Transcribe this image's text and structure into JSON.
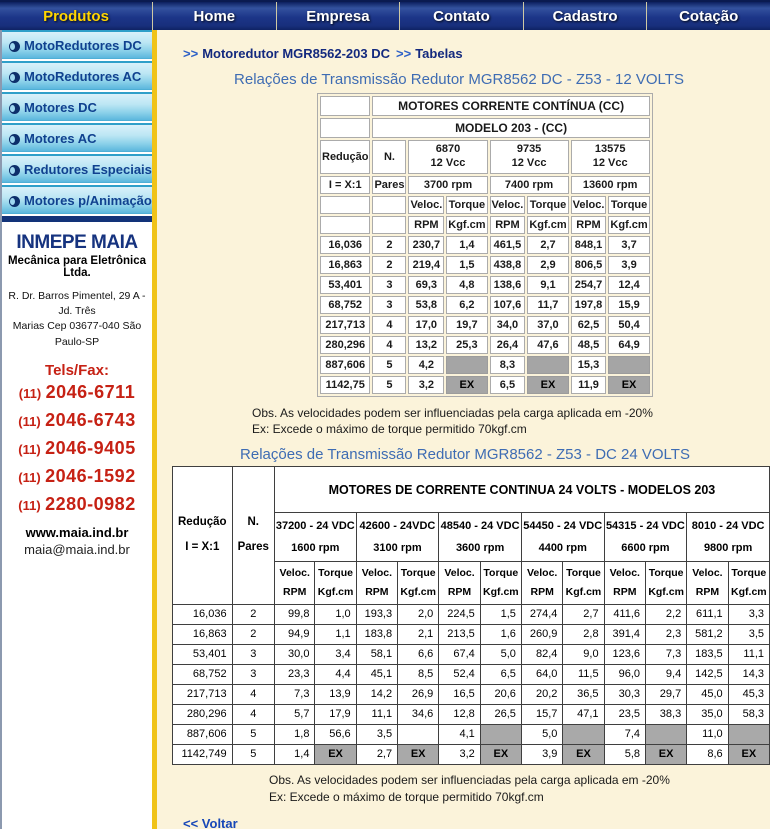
{
  "nav": {
    "items": [
      {
        "label": "Produtos",
        "active": true
      },
      {
        "label": "Home",
        "active": false
      },
      {
        "label": "Empresa",
        "active": false
      },
      {
        "label": "Contato",
        "active": false
      },
      {
        "label": "Cadastro",
        "active": false
      },
      {
        "label": "Cotação",
        "active": false
      }
    ]
  },
  "sidebar": {
    "menu": [
      "MotoRedutores DC",
      "MotoRedutores AC",
      "Motores DC",
      "Motores AC",
      "Redutores Especiais",
      "Motores p/Animação"
    ],
    "company": {
      "name": "INMEPE MAIA",
      "subtitle": "Mecânica para Eletrônica Ltda.",
      "address_line1": "R. Dr. Barros Pimentel, 29 A - Jd. Três",
      "address_line2": "Marias  Cep 03677-040  São Paulo-SP",
      "phones_label": "Tels/Fax:",
      "phones": [
        "(11) 2046-6711",
        "(11) 2046-6743",
        "(11) 2046-9405",
        "(11) 2046-1592",
        "(11) 2280-0982"
      ],
      "website": "www.maia.ind.br",
      "email": "maia@maia.ind.br"
    }
  },
  "breadcrumb": {
    "arrow": ">>",
    "item1": "Motoredutor MGR8562-203 DC",
    "item2": "Tabelas"
  },
  "obs": {
    "line1": "Obs. As velocidades podem ser influenciadas pela carga aplicada em -20%",
    "line2": "Ex: Excede o máximo de torque permitido 70kgf.cm"
  },
  "voltar_label": "<< Voltar",
  "colors": {
    "nav_blue": "#1C3588",
    "accent_yellow": "#F0C318",
    "title_blue": "#3E6CB3",
    "phone_red": "#C62114",
    "gray_cell": "#A5A5A5"
  },
  "table1": {
    "title": "Relações de Transmissão Redutor MGR8562 DC - Z53 - 12 VOLTS",
    "header_title": "MOTORES CORRENTE CONTÍNUA (CC)",
    "header_subtitle": "MODELO 203 - (CC)",
    "labels": {
      "reducao": "Redução",
      "ix": "I = X:1",
      "n": "N.",
      "pares": "Pares",
      "veloc": "Veloc.",
      "torque": "Torque",
      "rpm": "RPM",
      "kgf": "Kgf.cm"
    },
    "motors": [
      {
        "code": "6870",
        "volts": "12 Vcc",
        "rpm": "3700 rpm"
      },
      {
        "code": "9735",
        "volts": "12 Vcc",
        "rpm": "7400 rpm"
      },
      {
        "code": "13575",
        "volts": "12 Vcc",
        "rpm": "13600 rpm"
      }
    ],
    "rows": [
      {
        "reducao": "16,036",
        "pares": "2",
        "cells": [
          "230,7",
          "1,4",
          "461,5",
          "2,7",
          "848,1",
          "3,7"
        ]
      },
      {
        "reducao": "16,863",
        "pares": "2",
        "cells": [
          "219,4",
          "1,5",
          "438,8",
          "2,9",
          "806,5",
          "3,9"
        ]
      },
      {
        "reducao": "53,401",
        "pares": "3",
        "cells": [
          "69,3",
          "4,8",
          "138,6",
          "9,1",
          "254,7",
          "12,4"
        ]
      },
      {
        "reducao": "68,752",
        "pares": "3",
        "cells": [
          "53,8",
          "6,2",
          "107,6",
          "11,7",
          "197,8",
          "15,9"
        ]
      },
      {
        "reducao": "217,713",
        "pares": "4",
        "cells": [
          "17,0",
          "19,7",
          "34,0",
          "37,0",
          "62,5",
          "50,4"
        ]
      },
      {
        "reducao": "280,296",
        "pares": "4",
        "cells": [
          "13,2",
          "25,3",
          "26,4",
          "47,6",
          "48,5",
          "64,9"
        ]
      },
      {
        "reducao": "887,606",
        "pares": "5",
        "cells": [
          "4,2",
          {
            "v": "",
            "gray": true
          },
          "8,3",
          {
            "v": "",
            "gray": true
          },
          "15,3",
          {
            "v": "",
            "gray": true
          }
        ]
      },
      {
        "reducao": "1142,75",
        "pares": "5",
        "cells": [
          "3,2",
          {
            "v": "EX",
            "gray": true
          },
          "6,5",
          {
            "v": "EX",
            "gray": true
          },
          "11,9",
          {
            "v": "EX",
            "gray": true
          }
        ]
      }
    ]
  },
  "table2": {
    "title": "Relações de Transmissão Redutor MGR8562 - Z53 - DC 24 VOLTS",
    "header_title": "MOTORES DE CORRENTE CONTINUA 24 VOLTS - MODELOS 203",
    "labels": {
      "reducao": "Redução",
      "ix": "I = X:1",
      "n": "N.",
      "pares": "Pares",
      "veloc": "Veloc.",
      "torque": "Torque",
      "rpm": "RPM",
      "kgf": "Kgf.cm"
    },
    "motors": [
      {
        "code": "37200 - 24 VDC",
        "rpm": "1600 rpm"
      },
      {
        "code": "42600 - 24VDC",
        "rpm": "3100 rpm"
      },
      {
        "code": "48540 - 24 VDC",
        "rpm": "3600 rpm"
      },
      {
        "code": "54450 - 24 VDC",
        "rpm": "4400 rpm"
      },
      {
        "code": "54315 - 24 VDC",
        "rpm": "6600 rpm"
      },
      {
        "code": "8010 - 24 VDC",
        "rpm": "9800 rpm"
      }
    ],
    "rows": [
      {
        "reducao": "16,036",
        "pares": "2",
        "cells": [
          "99,8",
          "1,0",
          "193,3",
          "2,0",
          "224,5",
          "1,5",
          "274,4",
          "2,7",
          "411,6",
          "2,2",
          "611,1",
          "3,3"
        ]
      },
      {
        "reducao": "16,863",
        "pares": "2",
        "cells": [
          "94,9",
          "1,1",
          "183,8",
          "2,1",
          "213,5",
          "1,6",
          "260,9",
          "2,8",
          "391,4",
          "2,3",
          "581,2",
          "3,5"
        ]
      },
      {
        "reducao": "53,401",
        "pares": "3",
        "cells": [
          "30,0",
          "3,4",
          "58,1",
          "6,6",
          "67,4",
          "5,0",
          "82,4",
          "9,0",
          "123,6",
          "7,3",
          "183,5",
          "11,1"
        ]
      },
      {
        "reducao": "68,752",
        "pares": "3",
        "cells": [
          "23,3",
          "4,4",
          "45,1",
          "8,5",
          "52,4",
          "6,5",
          "64,0",
          "11,5",
          "96,0",
          "9,4",
          "142,5",
          "14,3"
        ]
      },
      {
        "reducao": "217,713",
        "pares": "4",
        "cells": [
          "7,3",
          "13,9",
          "14,2",
          "26,9",
          "16,5",
          "20,6",
          "20,2",
          "36,5",
          "30,3",
          "29,7",
          "45,0",
          "45,3"
        ]
      },
      {
        "reducao": "280,296",
        "pares": "4",
        "cells": [
          "5,7",
          "17,9",
          "11,1",
          "34,6",
          "12,8",
          "26,5",
          "15,7",
          "47,1",
          "23,5",
          "38,3",
          "35,0",
          "58,3"
        ]
      },
      {
        "reducao": "887,606",
        "pares": "5",
        "cells": [
          "1,8",
          "56,6",
          "3,5",
          "",
          "4,1",
          {
            "v": "",
            "gray": true
          },
          "5,0",
          {
            "v": "",
            "gray": true
          },
          "7,4",
          {
            "v": "",
            "gray": true
          },
          "11,0",
          {
            "v": "",
            "gray": true
          }
        ]
      },
      {
        "reducao": "1142,749",
        "pares": "5",
        "cells": [
          "1,4",
          {
            "v": "EX",
            "gray": true
          },
          "2,7",
          {
            "v": "EX",
            "gray": true
          },
          "3,2",
          {
            "v": "EX",
            "gray": true
          },
          "3,9",
          {
            "v": "EX",
            "gray": true
          },
          "5,8",
          {
            "v": "EX",
            "gray": true
          },
          "8,6",
          {
            "v": "EX",
            "gray": true
          }
        ]
      }
    ]
  }
}
